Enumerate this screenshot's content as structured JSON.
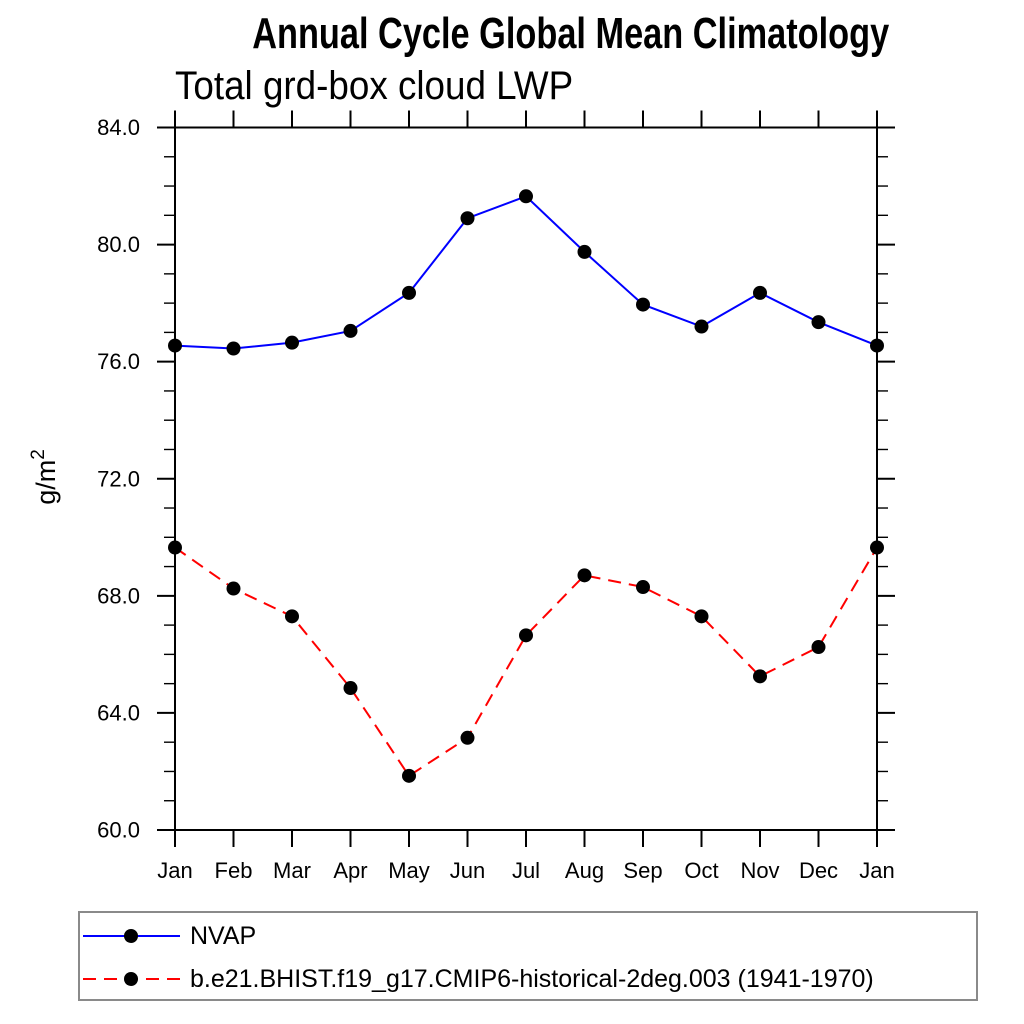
{
  "page": {
    "background": "#ffffff"
  },
  "chart_data": {
    "type": "line",
    "title": "Annual Cycle Global Mean Climatology",
    "subtitle": "Total grd-box cloud LWP",
    "xlabel": "",
    "ylabel": "g/m²",
    "categories": [
      "Jan",
      "Feb",
      "Mar",
      "Apr",
      "May",
      "Jun",
      "Jul",
      "Aug",
      "Sep",
      "Oct",
      "Nov",
      "Dec",
      "Jan"
    ],
    "ylim": [
      60.0,
      84.0
    ],
    "ytick_major_step": 4.0,
    "ytick_minor_step": 1.0,
    "ytick_labels": [
      "60.0",
      "64.0",
      "68.0",
      "72.0",
      "76.0",
      "80.0",
      "84.0"
    ],
    "grid": "off",
    "frame": "box-with-outward-ticks",
    "legend_position": "bottom-left-box",
    "axis_color": "#000000",
    "marker_color": "#000000",
    "series": [
      {
        "name": "NVAP",
        "color": "#0000ff",
        "style": "solid",
        "marker": "filled-circle",
        "values": [
          76.55,
          76.45,
          76.65,
          77.05,
          78.35,
          80.9,
          81.65,
          79.75,
          77.95,
          77.2,
          78.35,
          77.35,
          76.55
        ]
      },
      {
        "name": "b.e21.BHIST.f19_g17.CMIP6-historical-2deg.003 (1941-1970)",
        "color": "#ff0000",
        "style": "dashed",
        "marker": "filled-circle",
        "values": [
          69.65,
          68.25,
          67.3,
          64.85,
          61.85,
          63.15,
          66.65,
          68.7,
          68.3,
          67.3,
          65.25,
          66.25,
          69.65
        ]
      }
    ]
  }
}
